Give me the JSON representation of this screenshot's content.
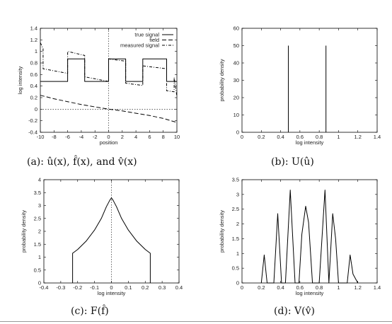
{
  "chart_data": [
    {
      "type": "line",
      "caption": "(a): û(x), f̂(x), and v̂(x)",
      "xlabel": "position",
      "ylabel": "log intensity",
      "xlim": [
        -10,
        10
      ],
      "ylim": [
        -0.4,
        1.4
      ],
      "xticks": [
        -10,
        -8,
        -6,
        -4,
        -2,
        0,
        2,
        4,
        6,
        8,
        10
      ],
      "yticks": [
        -0.4,
        -0.2,
        0,
        0.2,
        0.4,
        0.6,
        0.8,
        1,
        1.2,
        1.4
      ],
      "legend": "top-right",
      "series": [
        {
          "name": "true signal",
          "style": "solid",
          "x": [
            -10,
            -6,
            -6,
            -3.5,
            -3.5,
            0,
            0,
            2.5,
            2.5,
            5,
            5,
            8.5,
            8.5,
            10
          ],
          "y": [
            0.48,
            0.48,
            0.87,
            0.87,
            0.48,
            0.48,
            0.87,
            0.87,
            0.48,
            0.48,
            0.87,
            0.87,
            0.48,
            0.48
          ]
        },
        {
          "name": "field",
          "style": "dashed",
          "x": [
            -10,
            -8,
            -6,
            -4,
            -2,
            0,
            2,
            4,
            6,
            8,
            10
          ],
          "y": [
            0.24,
            0.18,
            0.13,
            0.08,
            0.04,
            0.0,
            -0.03,
            -0.07,
            -0.11,
            -0.16,
            -0.23
          ]
        },
        {
          "name": "measured signal",
          "style": "dash-dot",
          "x": [
            -10,
            -9.6,
            -9.6,
            -6,
            -6,
            -3.5,
            -3.5,
            0,
            0,
            2.5,
            2.5,
            5,
            5,
            8.5,
            8.5,
            9.6,
            9.6,
            10
          ],
          "y": [
            1.15,
            1.05,
            0.7,
            0.62,
            1.0,
            0.93,
            0.56,
            0.48,
            0.87,
            0.83,
            0.45,
            0.41,
            0.75,
            0.7,
            0.32,
            0.3,
            0.55,
            0.22
          ]
        }
      ],
      "annotations": [
        "vertical dotted line at x=0",
        "horizontal dotted line at y=0"
      ]
    },
    {
      "type": "line",
      "caption": "(b): U(û)",
      "xlabel": "log intensity",
      "ylabel": "probability density",
      "xlim": [
        0,
        1.4
      ],
      "ylim": [
        0,
        60
      ],
      "xticks": [
        0,
        0.2,
        0.4,
        0.6,
        0.8,
        1,
        1.2,
        1.4
      ],
      "yticks": [
        0,
        10,
        20,
        30,
        40,
        50,
        60
      ],
      "series": [
        {
          "x": [
            0.48,
            0.48,
            0.48,
            0.87,
            0.87,
            0.87
          ],
          "y": [
            0,
            50,
            0,
            0,
            50,
            0
          ],
          "segments": [
            [
              0.48,
              50
            ],
            [
              0.87,
              50
            ]
          ]
        }
      ]
    },
    {
      "type": "line",
      "caption": "(c): F(f̂)",
      "xlabel": "log intensity",
      "ylabel": "probability density",
      "xlim": [
        -0.4,
        0.4
      ],
      "ylim": [
        0,
        4
      ],
      "xticks": [
        -0.4,
        -0.3,
        -0.2,
        -0.1,
        0,
        0.1,
        0.2,
        0.3,
        0.4
      ],
      "yticks": [
        0,
        0.5,
        1,
        1.5,
        2,
        2.5,
        3,
        3.5,
        4
      ],
      "series": [
        {
          "x": [
            -0.23,
            -0.23,
            -0.2,
            -0.15,
            -0.1,
            -0.06,
            -0.03,
            -0.01,
            0,
            0.01,
            0.03,
            0.06,
            0.1,
            0.15,
            0.2,
            0.23,
            0.23
          ],
          "y": [
            0,
            1.15,
            1.3,
            1.62,
            2.05,
            2.5,
            2.95,
            3.2,
            3.3,
            3.2,
            2.95,
            2.5,
            2.05,
            1.62,
            1.3,
            1.15,
            0
          ]
        }
      ],
      "annotations": [
        "vertical dotted line at x=0"
      ]
    },
    {
      "type": "line",
      "caption": "(d): V(v̂)",
      "xlabel": "log intensity",
      "ylabel": "probability density",
      "xlim": [
        0,
        1.4
      ],
      "ylim": [
        0,
        3.5
      ],
      "xticks": [
        0,
        0.2,
        0.4,
        0.6,
        0.8,
        1,
        1.2,
        1.4
      ],
      "yticks": [
        0,
        0.5,
        1,
        1.5,
        2,
        2.5,
        3,
        3.5
      ],
      "series": [
        {
          "x": [
            0.2,
            0.23,
            0.26,
            0.33,
            0.37,
            0.41,
            0.45,
            0.5,
            0.55,
            0.59,
            0.62,
            0.66,
            0.69,
            0.73,
            0.76,
            0.8,
            0.86,
            0.9,
            0.94,
            0.97,
            1.0,
            1.06,
            1.09,
            1.12,
            1.15,
            1.2
          ],
          "y": [
            0,
            0.95,
            0,
            0,
            2.35,
            0,
            0,
            3.15,
            0,
            0,
            1.65,
            2.6,
            2.05,
            0,
            0,
            0,
            3.15,
            0,
            2.35,
            1.5,
            0,
            0,
            0,
            0.95,
            0.3,
            0
          ]
        }
      ]
    }
  ]
}
